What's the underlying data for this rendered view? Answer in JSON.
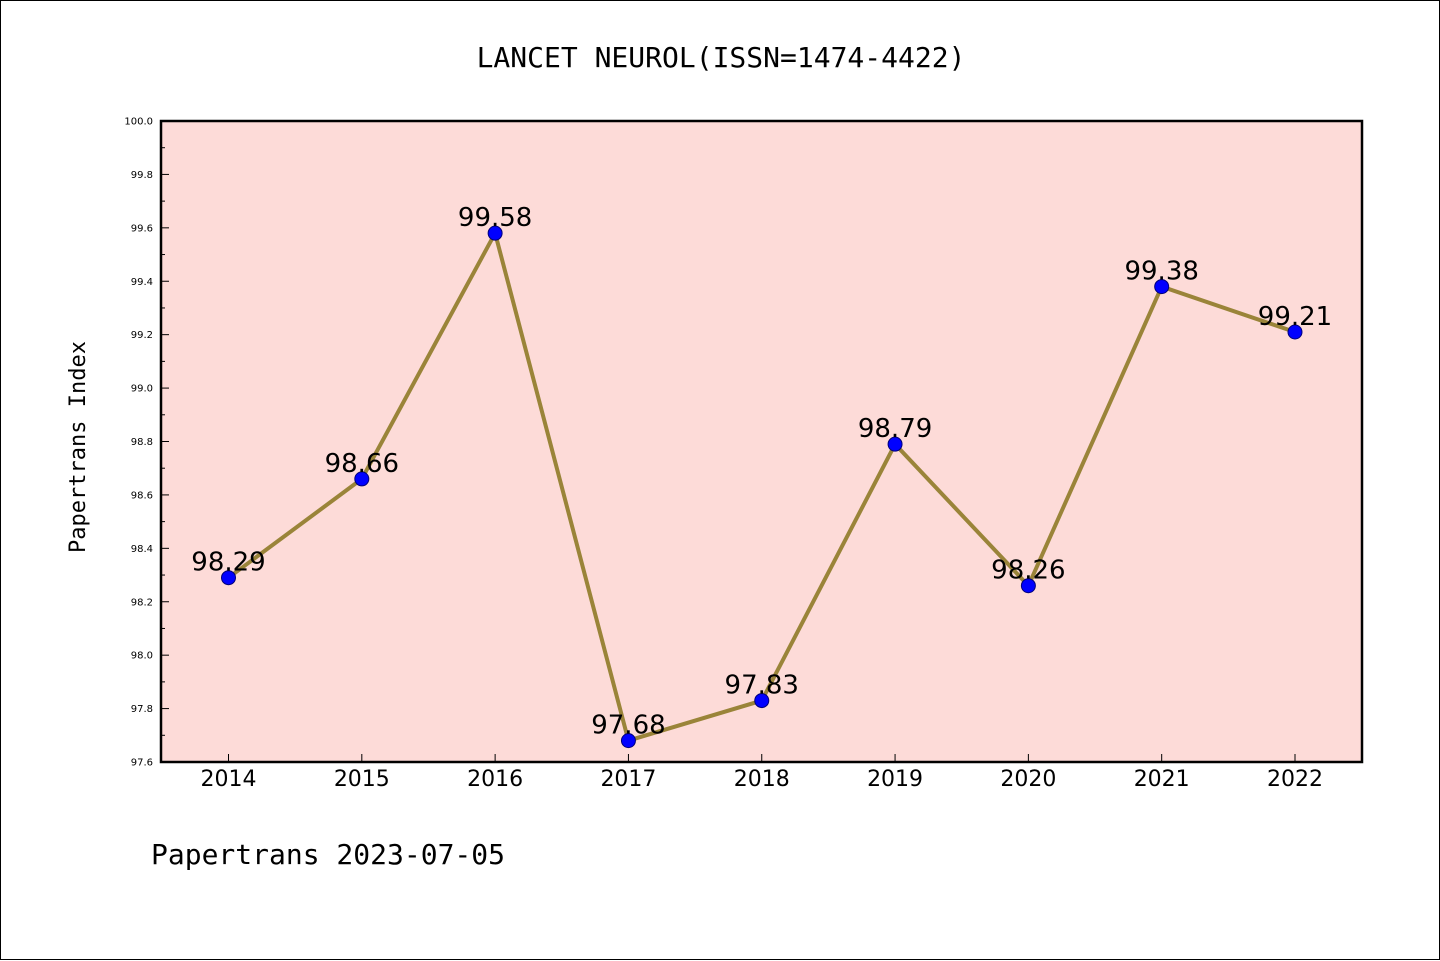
{
  "chart_data": {
    "type": "line",
    "title": "LANCET NEUROL(ISSN=1474-4422)",
    "xlabel": "",
    "ylabel": "Papertrans Index",
    "categories": [
      "2014",
      "2015",
      "2016",
      "2017",
      "2018",
      "2019",
      "2020",
      "2021",
      "2022"
    ],
    "values": [
      98.29,
      98.66,
      99.58,
      97.68,
      97.83,
      98.79,
      98.26,
      99.38,
      99.21
    ],
    "data_labels": [
      "98.29",
      "98.66",
      "99.58",
      "97.68",
      "97.83",
      "98.79",
      "98.26",
      "99.38",
      "99.21"
    ],
    "ylim": [
      97.6,
      100.0
    ],
    "yticks": [
      "97.6",
      "97.8",
      "98.0",
      "98.2",
      "98.4",
      "98.6",
      "98.8",
      "99.0",
      "99.2",
      "99.4",
      "99.6",
      "99.8",
      "100.0"
    ],
    "grid": false,
    "legend": "none",
    "footer": "Papertrans 2023-07-05",
    "colors": {
      "plot_background": "#fddbd8",
      "line": "#9a8439",
      "marker_fill": "#0000ff",
      "marker_edge": "#00007a"
    }
  }
}
